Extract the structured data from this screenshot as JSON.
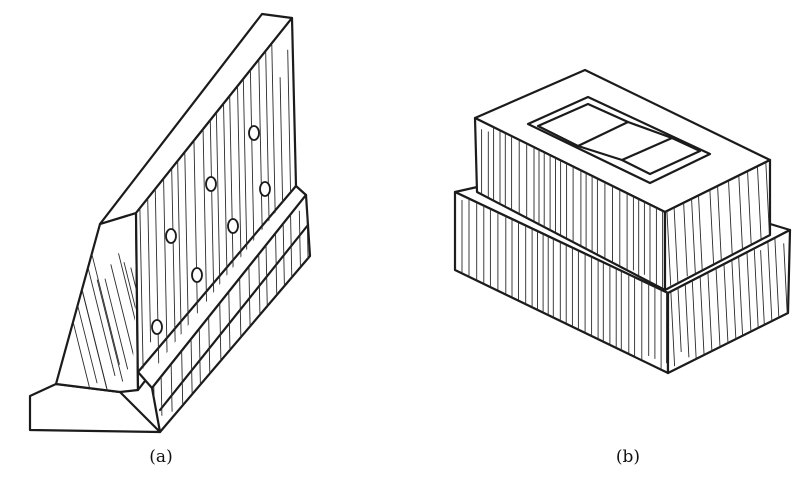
{
  "figure_a": {
    "caption": "(a)"
  },
  "figure_b": {
    "caption": "(b)"
  }
}
